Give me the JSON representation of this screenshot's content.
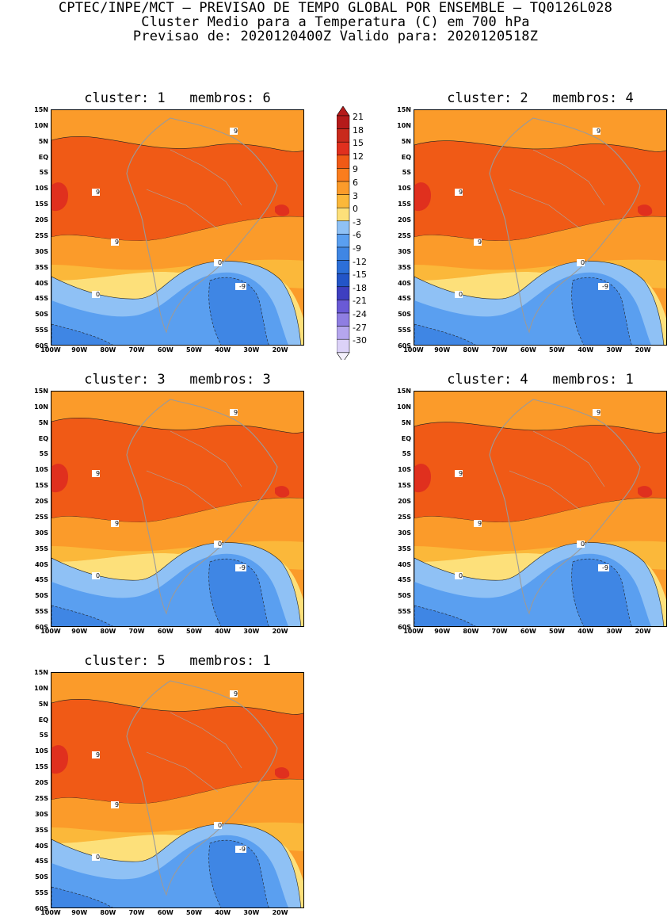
{
  "header": {
    "line1": "CPTEC/INPE/MCT – PREVISAO DE TEMPO GLOBAL POR ENSEMBLE – TQ0126L028",
    "line2": "Cluster Medio para a Temperatura (C) em 700 hPa",
    "line3": "Previsao de: 2020120400Z   Valido para: 2020120518Z"
  },
  "axes": {
    "lat_labels": [
      "15N",
      "10N",
      "5N",
      "EQ",
      "5S",
      "10S",
      "15S",
      "20S",
      "25S",
      "30S",
      "35S",
      "40S",
      "45S",
      "50S",
      "55S",
      "60S"
    ],
    "lon_labels": [
      "100W",
      "90W",
      "80W",
      "70W",
      "60W",
      "50W",
      "40W",
      "30W",
      "20W"
    ]
  },
  "colorbar": {
    "labels": [
      "21",
      "18",
      "15",
      "12",
      "9",
      "6",
      "3",
      "0",
      "-3",
      "-6",
      "-9",
      "-12",
      "-15",
      "-18",
      "-21",
      "-24",
      "-27",
      "-30"
    ],
    "colors": [
      "#b51a1a",
      "#c92a1c",
      "#e0301e",
      "#f05a16",
      "#fb7d1d",
      "#fb9b2a",
      "#fbb83a",
      "#fde07a",
      "#8fc1f5",
      "#5a9ff0",
      "#3f86e4",
      "#2c6fd8",
      "#2355c8",
      "#3e3fc0",
      "#6a5ad6",
      "#8f7ee2",
      "#b5a6ee",
      "#dcd2f8"
    ]
  },
  "panels": [
    {
      "title": "cluster: 1   membros: 6",
      "neg_label": "-9",
      "zero_label": "0",
      "pos_label": "9"
    },
    {
      "title": "cluster: 2   membros: 4",
      "neg_label": "-9",
      "zero_label": "0",
      "pos_label": "9"
    },
    {
      "title": "cluster: 3   membros: 3",
      "neg_label": "-9",
      "zero_label": "0",
      "pos_label": "9"
    },
    {
      "title": "cluster: 4   membros: 1",
      "neg_label": "-9",
      "zero_label": "0",
      "pos_label": "9"
    },
    {
      "title": "cluster: 5   membros: 1",
      "neg_label": "-9",
      "zero_label": "0",
      "pos_label": "9"
    }
  ]
}
